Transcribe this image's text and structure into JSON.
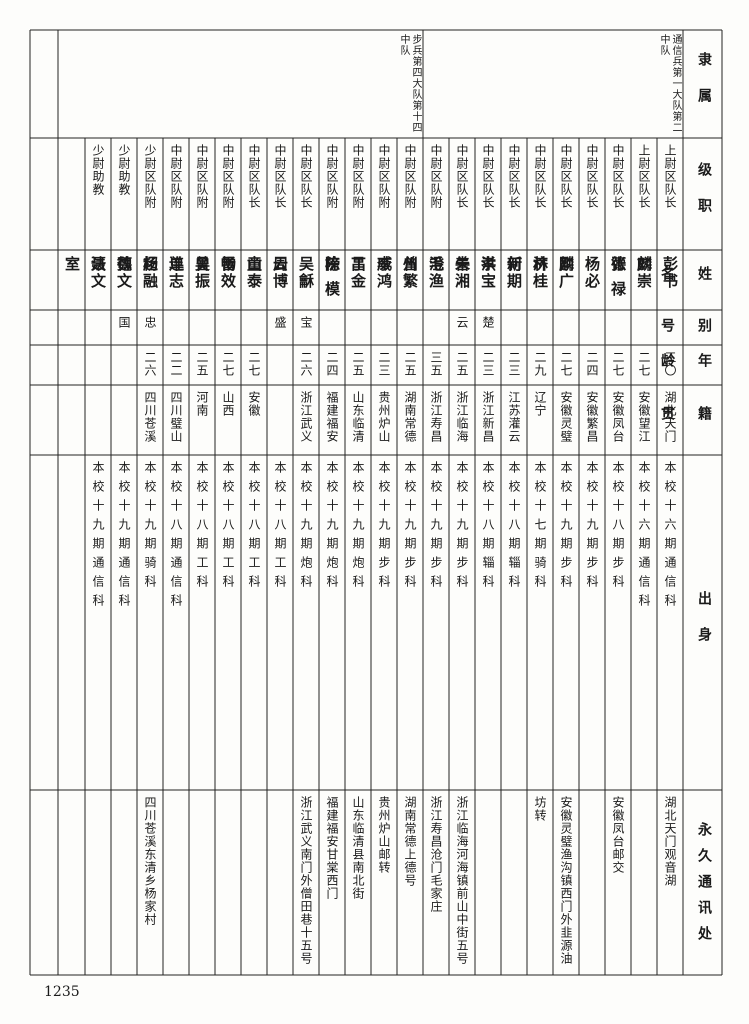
{
  "table": {
    "headers": [
      "隶属",
      "级职",
      "姓名",
      "别号",
      "年龄",
      "籍贯",
      "出身",
      "永久通讯处"
    ],
    "groups": [
      {
        "unit": "通信兵第一大队第二中队",
        "rows": [
          [
            "上尉区队长",
            "彭书麟",
            null,
            "三〇",
            "湖北天门",
            "本校十六期通信科",
            "湖北天门观音湖"
          ],
          [
            "上尉区队长",
            "刘崇德",
            null,
            "二七",
            "安徽望江",
            "本校十六期通信科",
            null
          ],
          [
            "中尉区队长",
            "张禄",
            null,
            "二七",
            "安徽凤台",
            "本校十八期步科",
            "安徽凤台邮交"
          ],
          [
            "中尉区队长",
            "杨必麟",
            null,
            "二四",
            "安徽繁昌",
            "本校十九期步科",
            null
          ],
          [
            "中尉区队长",
            "刚广济",
            null,
            "二七",
            "安徽灵璧",
            "本校十九期步科",
            "安徽灵璧渔沟镇西门外韭源油坊转"
          ],
          [
            "中尉区队长",
            "林桂新",
            null,
            "二九",
            "辽宁",
            "本校十七期骑科",
            null
          ],
          [
            "中尉区队长",
            "何期孝",
            null,
            "二三",
            "江苏灌云",
            "本校十八期辎科",
            null
          ],
          [
            "中尉区队长",
            "洪宝善",
            "楚云",
            "二三",
            "浙江新昌",
            "本校十八期辎科",
            null
          ],
          [
            "中尉区队长",
            "朱湘澄",
            null,
            "二五",
            "浙江临海",
            "本校十九期步科",
            "浙江临海河海镇前山中街五号"
          ],
          [
            "中尉区队附",
            "毛渔州",
            null,
            "三五",
            "浙江寿昌",
            "本校十九期步科",
            "浙江寿昌沧门毛家庄"
          ]
        ]
      },
      {
        "unit": "步兵第四大队第十四中队",
        "rows": [
          [
            "中尉区队附",
            "曾繁威",
            null,
            "二五",
            "湖南常德",
            "本校十九期步科",
            "湖南常德上德号"
          ],
          [
            "中尉区队附",
            "李鸿昌",
            null,
            "二三",
            "贵州炉山",
            "本校十九期步科",
            "贵州炉山邮转"
          ],
          [
            "中尉区队附",
            "丁金榜",
            null,
            "二五",
            "山东临清",
            "本校十九期炮科",
            "山东临清县南北街"
          ],
          [
            "中尉区队附",
            "陈模",
            null,
            "二四",
            "福建福安",
            "本校十九期炮科",
            "福建福安甘棠西门"
          ],
          [
            "中尉区队长",
            "吴龢云",
            "宝盛",
            "二六",
            "浙江武义",
            "本校十九期炮科",
            "浙江武义南门外僧田巷十五号"
          ],
          [
            "中尉区队长",
            "周博山",
            null,
            null,
            null,
            "本校十八期工科",
            null
          ],
          [
            "中尉区队长",
            "童泰雷",
            null,
            "二七",
            "安徽",
            "本校十八期工科",
            null
          ],
          [
            "中尉区队附",
            "畅效曾",
            null,
            "二七",
            "山西",
            "本校十八期工科",
            null
          ],
          [
            "中尉区队附",
            "吴振单",
            null,
            "二五",
            "河南",
            "本校十八期工科",
            null
          ],
          [
            "中尉区队附",
            "连志超",
            null,
            "二二",
            "四川璧山",
            "本校十八期通信科",
            null
          ],
          [
            "少尉区队附",
            "杨融德",
            "忠国",
            "二六",
            "四川苍溪",
            "本校十九期骑科",
            "四川苍溪东清乡杨家村"
          ],
          [
            "少尉助教",
            "魏文法",
            null,
            null,
            null,
            "本校十九期通信科",
            null
          ],
          [
            "少尉助教",
            "聂文室",
            null,
            null,
            null,
            "本校十九期通信科",
            null
          ]
        ]
      }
    ]
  },
  "page_number": "1235"
}
